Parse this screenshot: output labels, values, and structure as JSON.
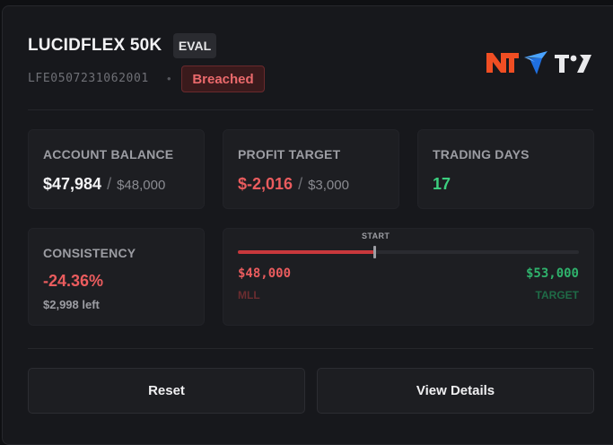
{
  "account": {
    "name": "LUCIDFLEX 50K",
    "type_badge": "EVAL",
    "id": "LFE0507231062001",
    "separator": "•",
    "status": "Breached"
  },
  "platform_logos": [
    "ninjatrader-icon",
    "tradovate-icon",
    "tradingview-icon"
  ],
  "stats": {
    "balance": {
      "label": "ACCOUNT BALANCE",
      "value": "$47,984",
      "sep": "/",
      "total": "$48,000"
    },
    "profit": {
      "label": "PROFIT TARGET",
      "value": "$-2,016",
      "sep": "/",
      "total": "$3,000"
    },
    "days": {
      "label": "TRADING DAYS",
      "value": "17"
    },
    "consistency": {
      "label": "CONSISTENCY",
      "value": "-24.36%",
      "remaining": "$2,998 left"
    }
  },
  "progress": {
    "start_label": "START",
    "start_fraction": 0.4,
    "fill_fraction": 0.4,
    "left_value": "$48,000",
    "left_label": "MLL",
    "right_value": "$53,000",
    "right_label": "TARGET"
  },
  "buttons": {
    "reset": "Reset",
    "details": "View Details"
  },
  "colors": {
    "breached": "#ea6a6c",
    "negative": "#ea5c5e",
    "positive": "#3ccf7f",
    "ninjatrader": "#f04e23",
    "tradovate": "#2e8bff"
  }
}
